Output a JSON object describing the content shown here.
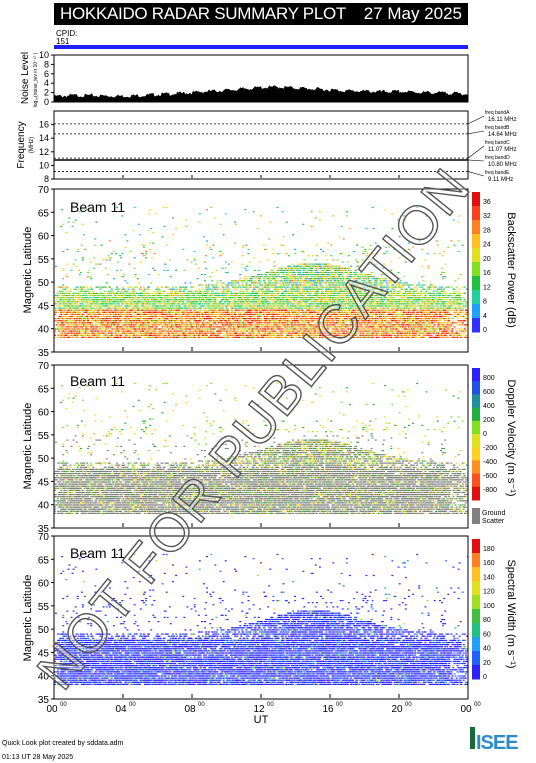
{
  "title": "HOKKAIDO RADAR SUMMARY PLOT",
  "date": "27 May 2025",
  "cpid": {
    "label": "CPID:",
    "value": "151"
  },
  "footer": {
    "credit": "Quick Look plot created by sddata.adm",
    "time": "01:13 UT 28 May 2025"
  },
  "logo": "ISEE",
  "watermark": "NOT FOR PUBLICATION",
  "colors": {
    "cpid_bar": "#2020ff",
    "ground_scatter": "#808080",
    "noise_fill": "#000000"
  },
  "chart_data": [
    {
      "type": "area",
      "name": "noise",
      "ylabel": "Noise Level",
      "ylabel_units": "log₁₀(noise_lev in 10⁻¹⁰ )",
      "ylim": [
        0,
        10
      ],
      "yticks": [
        0,
        2,
        4,
        6,
        8,
        10
      ],
      "x": [
        0,
        1,
        2,
        3,
        4,
        5,
        6,
        7,
        8,
        9,
        10,
        11,
        12,
        13,
        14,
        15,
        16,
        17,
        18,
        19,
        20,
        21,
        22,
        23,
        24
      ],
      "values": [
        1.2,
        1.4,
        1.4,
        1.3,
        1.3,
        1.4,
        1.6,
        1.8,
        2.0,
        2.3,
        2.5,
        2.8,
        3.1,
        3.2,
        3.0,
        2.8,
        2.6,
        2.4,
        2.3,
        2.2,
        2.2,
        2.1,
        2.0,
        1.9,
        1.7
      ]
    },
    {
      "type": "line",
      "name": "frequency",
      "ylabel": "Frequency",
      "ylabel_units": "(MHz)",
      "ylim": [
        8,
        18
      ],
      "yticks": [
        8,
        10,
        12,
        14,
        16
      ],
      "bands": [
        {
          "label": "freq bandA",
          "value": 16.11,
          "text": "16.11 MHz"
        },
        {
          "label": "freq bandB",
          "value": 14.64,
          "text": "14.64 MHz"
        },
        {
          "label": "freq bandC",
          "value": 11.07,
          "text": "11.07 MHz"
        },
        {
          "label": "freq bandD",
          "value": 10.8,
          "text": "10.80 MHz"
        },
        {
          "label": "freq bandE",
          "value": 9.11,
          "text": "9.11 MHz"
        }
      ],
      "operating_frequency": 10.8
    },
    {
      "type": "heatmap",
      "name": "power",
      "beam": "Beam 11",
      "ylabel": "Magnetic Latitude",
      "ylim": [
        35,
        70
      ],
      "yticks": [
        35,
        40,
        45,
        50,
        55,
        60,
        65,
        70
      ],
      "colorbar_label": "Backscatter Power (dB)",
      "colorbar_ticks": [
        "0",
        "4",
        "8",
        "12",
        "16",
        "20",
        "24",
        "28",
        "32",
        "36"
      ],
      "colorbar_range": [
        0,
        40
      ]
    },
    {
      "type": "heatmap",
      "name": "velocity",
      "beam": "Beam 11",
      "ylabel": "Magnetic Latitude",
      "ylim": [
        35,
        70
      ],
      "yticks": [
        35,
        40,
        45,
        50,
        55,
        60,
        65,
        70
      ],
      "colorbar_label": "Doppler Velocity (m s⁻¹)",
      "colorbar_ticks": [
        "800",
        "600",
        "400",
        "200",
        "0",
        "-200",
        "-400",
        "-600",
        "-800"
      ],
      "colorbar_range": [
        -900,
        900
      ],
      "ground_scatter_label": [
        "Ground",
        "Scatter"
      ]
    },
    {
      "type": "heatmap",
      "name": "width",
      "beam": "Beam 11",
      "ylabel": "Magnetic Latitude",
      "ylim": [
        35,
        70
      ],
      "yticks": [
        35,
        40,
        45,
        50,
        55,
        60,
        65,
        70
      ],
      "colorbar_label": "Spectral Width (m s⁻¹)",
      "colorbar_ticks": [
        "0",
        "20",
        "40",
        "60",
        "80",
        "100",
        "120",
        "140",
        "160",
        "180"
      ],
      "colorbar_range": [
        0,
        195
      ]
    }
  ],
  "xaxis": {
    "label": "UT",
    "range": [
      0,
      24
    ],
    "ticks": [
      {
        "hour": 0,
        "label": "00",
        "sup": "00"
      },
      {
        "hour": 4,
        "label": "04",
        "sup": "00"
      },
      {
        "hour": 8,
        "label": "08",
        "sup": "00"
      },
      {
        "hour": 12,
        "label": "12",
        "sup": "00"
      },
      {
        "hour": 16,
        "label": "16",
        "sup": "00"
      },
      {
        "hour": 20,
        "label": "20",
        "sup": "00"
      },
      {
        "hour": 24,
        "label": "00",
        "sup": "00"
      }
    ]
  }
}
